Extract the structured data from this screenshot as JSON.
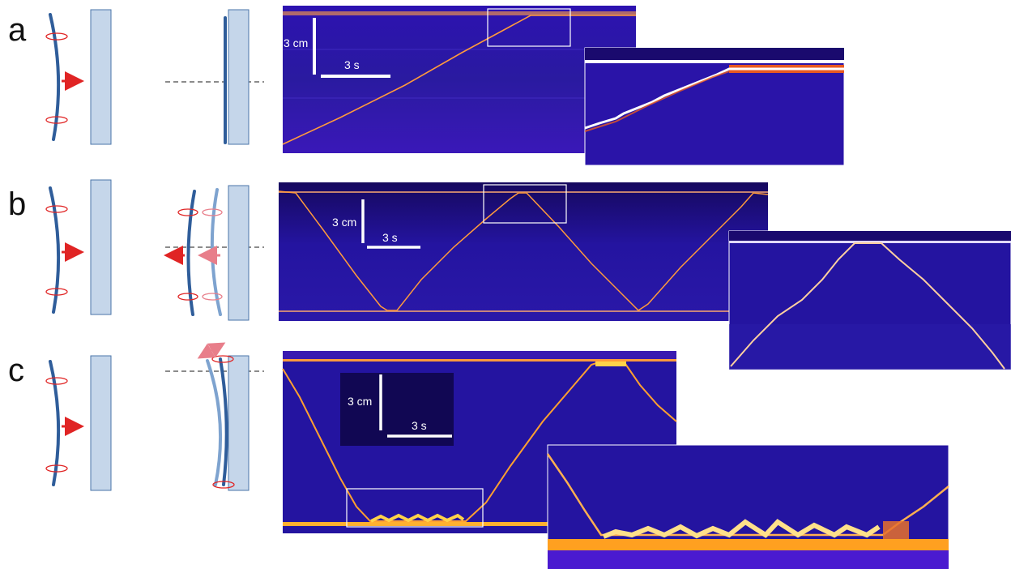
{
  "panels": [
    {
      "letter": "a",
      "scale_y_label": "3 cm",
      "scale_x_label": "3 s"
    },
    {
      "letter": "b",
      "scale_y_label": "3 cm",
      "scale_x_label": "3 s"
    },
    {
      "letter": "c",
      "scale_y_label": "3 cm",
      "scale_x_label": "3 s"
    }
  ],
  "colors": {
    "kymo_bg": "#2a14a8",
    "kymo_dark": "#1a0a6e",
    "trace": "#ff9a3c",
    "trace_hot": "#ffd34a",
    "filament": "#2f5d9a",
    "filament_light": "#7ea3cf",
    "wall_fill": "#c5d6ea",
    "wall_stroke": "#4a74a8",
    "arrow_red": "#e02424",
    "arrow_pink": "#e87e8a",
    "dash": "#666666"
  }
}
